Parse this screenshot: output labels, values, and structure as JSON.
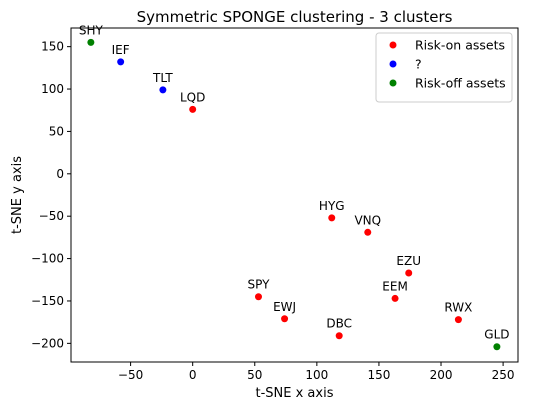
{
  "chart_data": {
    "type": "scatter",
    "title": "Symmetric SPONGE clustering - 3 clusters",
    "xlabel": "t-SNE x axis",
    "ylabel": "t-SNE y axis",
    "xlim": [
      -98,
      262
    ],
    "ylim": [
      -222,
      172
    ],
    "xticks": [
      -50,
      0,
      50,
      100,
      150,
      200,
      250
    ],
    "yticks": [
      -200,
      -150,
      -100,
      -50,
      0,
      50,
      100,
      150
    ],
    "grid": false,
    "legend_position": "top-right",
    "series": [
      {
        "name": "Risk-on assets",
        "color": "#ff0000",
        "points": [
          {
            "label": "LQD",
            "x": 0,
            "y": 76
          },
          {
            "label": "HYG",
            "x": 112,
            "y": -52
          },
          {
            "label": "VNQ",
            "x": 141,
            "y": -69
          },
          {
            "label": "EZU",
            "x": 174,
            "y": -117
          },
          {
            "label": "EEM",
            "x": 163,
            "y": -147
          },
          {
            "label": "SPY",
            "x": 53,
            "y": -145
          },
          {
            "label": "EWJ",
            "x": 74,
            "y": -171
          },
          {
            "label": "DBC",
            "x": 118,
            "y": -191
          },
          {
            "label": "RWX",
            "x": 214,
            "y": -172
          }
        ]
      },
      {
        "name": "?",
        "color": "#0000ff",
        "points": [
          {
            "label": "IEF",
            "x": -58,
            "y": 132
          },
          {
            "label": "TLT",
            "x": -24,
            "y": 99
          }
        ]
      },
      {
        "name": "Risk-off assets",
        "color": "#008000",
        "points": [
          {
            "label": "SHY",
            "x": -82,
            "y": 155
          },
          {
            "label": "GLD",
            "x": 245,
            "y": -204
          }
        ]
      }
    ]
  }
}
